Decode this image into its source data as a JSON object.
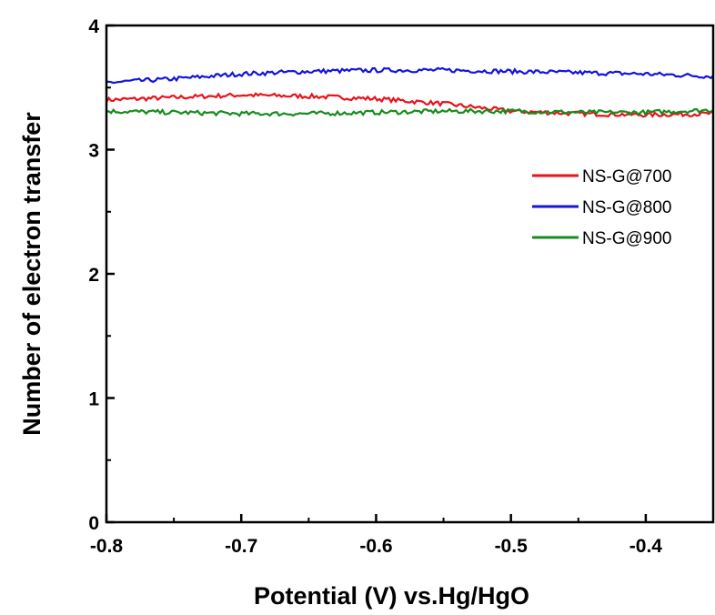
{
  "chart_data": {
    "type": "line",
    "title": "",
    "xlabel": "Potential (V) vs.Hg/HgO",
    "ylabel": "Number of electron transfer",
    "xlim": [
      -0.8,
      -0.35
    ],
    "ylim": [
      0,
      4
    ],
    "x_ticks": [
      "-0.8",
      "-0.7",
      "-0.6",
      "-0.5",
      "-0.4"
    ],
    "x_tick_values": [
      -0.8,
      -0.7,
      -0.6,
      -0.5,
      -0.4
    ],
    "y_ticks": [
      "0",
      "1",
      "2",
      "3",
      "4"
    ],
    "y_tick_values": [
      0,
      1,
      2,
      3,
      4
    ],
    "grid": false,
    "legend_position": "right",
    "series": [
      {
        "name": "NS-G@700",
        "color": "#e8131b",
        "x": [
          -0.8,
          -0.75,
          -0.7,
          -0.65,
          -0.6,
          -0.55,
          -0.5,
          -0.45,
          -0.4,
          -0.35
        ],
        "y": [
          3.4,
          3.42,
          3.44,
          3.43,
          3.41,
          3.37,
          3.31,
          3.29,
          3.28,
          3.29
        ]
      },
      {
        "name": "NS-G@800",
        "color": "#1414e0",
        "x": [
          -0.8,
          -0.75,
          -0.7,
          -0.65,
          -0.6,
          -0.55,
          -0.5,
          -0.45,
          -0.4,
          -0.35
        ],
        "y": [
          3.54,
          3.57,
          3.61,
          3.63,
          3.64,
          3.64,
          3.63,
          3.62,
          3.61,
          3.59
        ]
      },
      {
        "name": "NS-G@900",
        "color": "#178c1c",
        "x": [
          -0.8,
          -0.75,
          -0.7,
          -0.65,
          -0.6,
          -0.55,
          -0.5,
          -0.45,
          -0.4,
          -0.35
        ],
        "y": [
          3.31,
          3.3,
          3.29,
          3.29,
          3.3,
          3.31,
          3.31,
          3.3,
          3.3,
          3.32
        ]
      }
    ]
  }
}
